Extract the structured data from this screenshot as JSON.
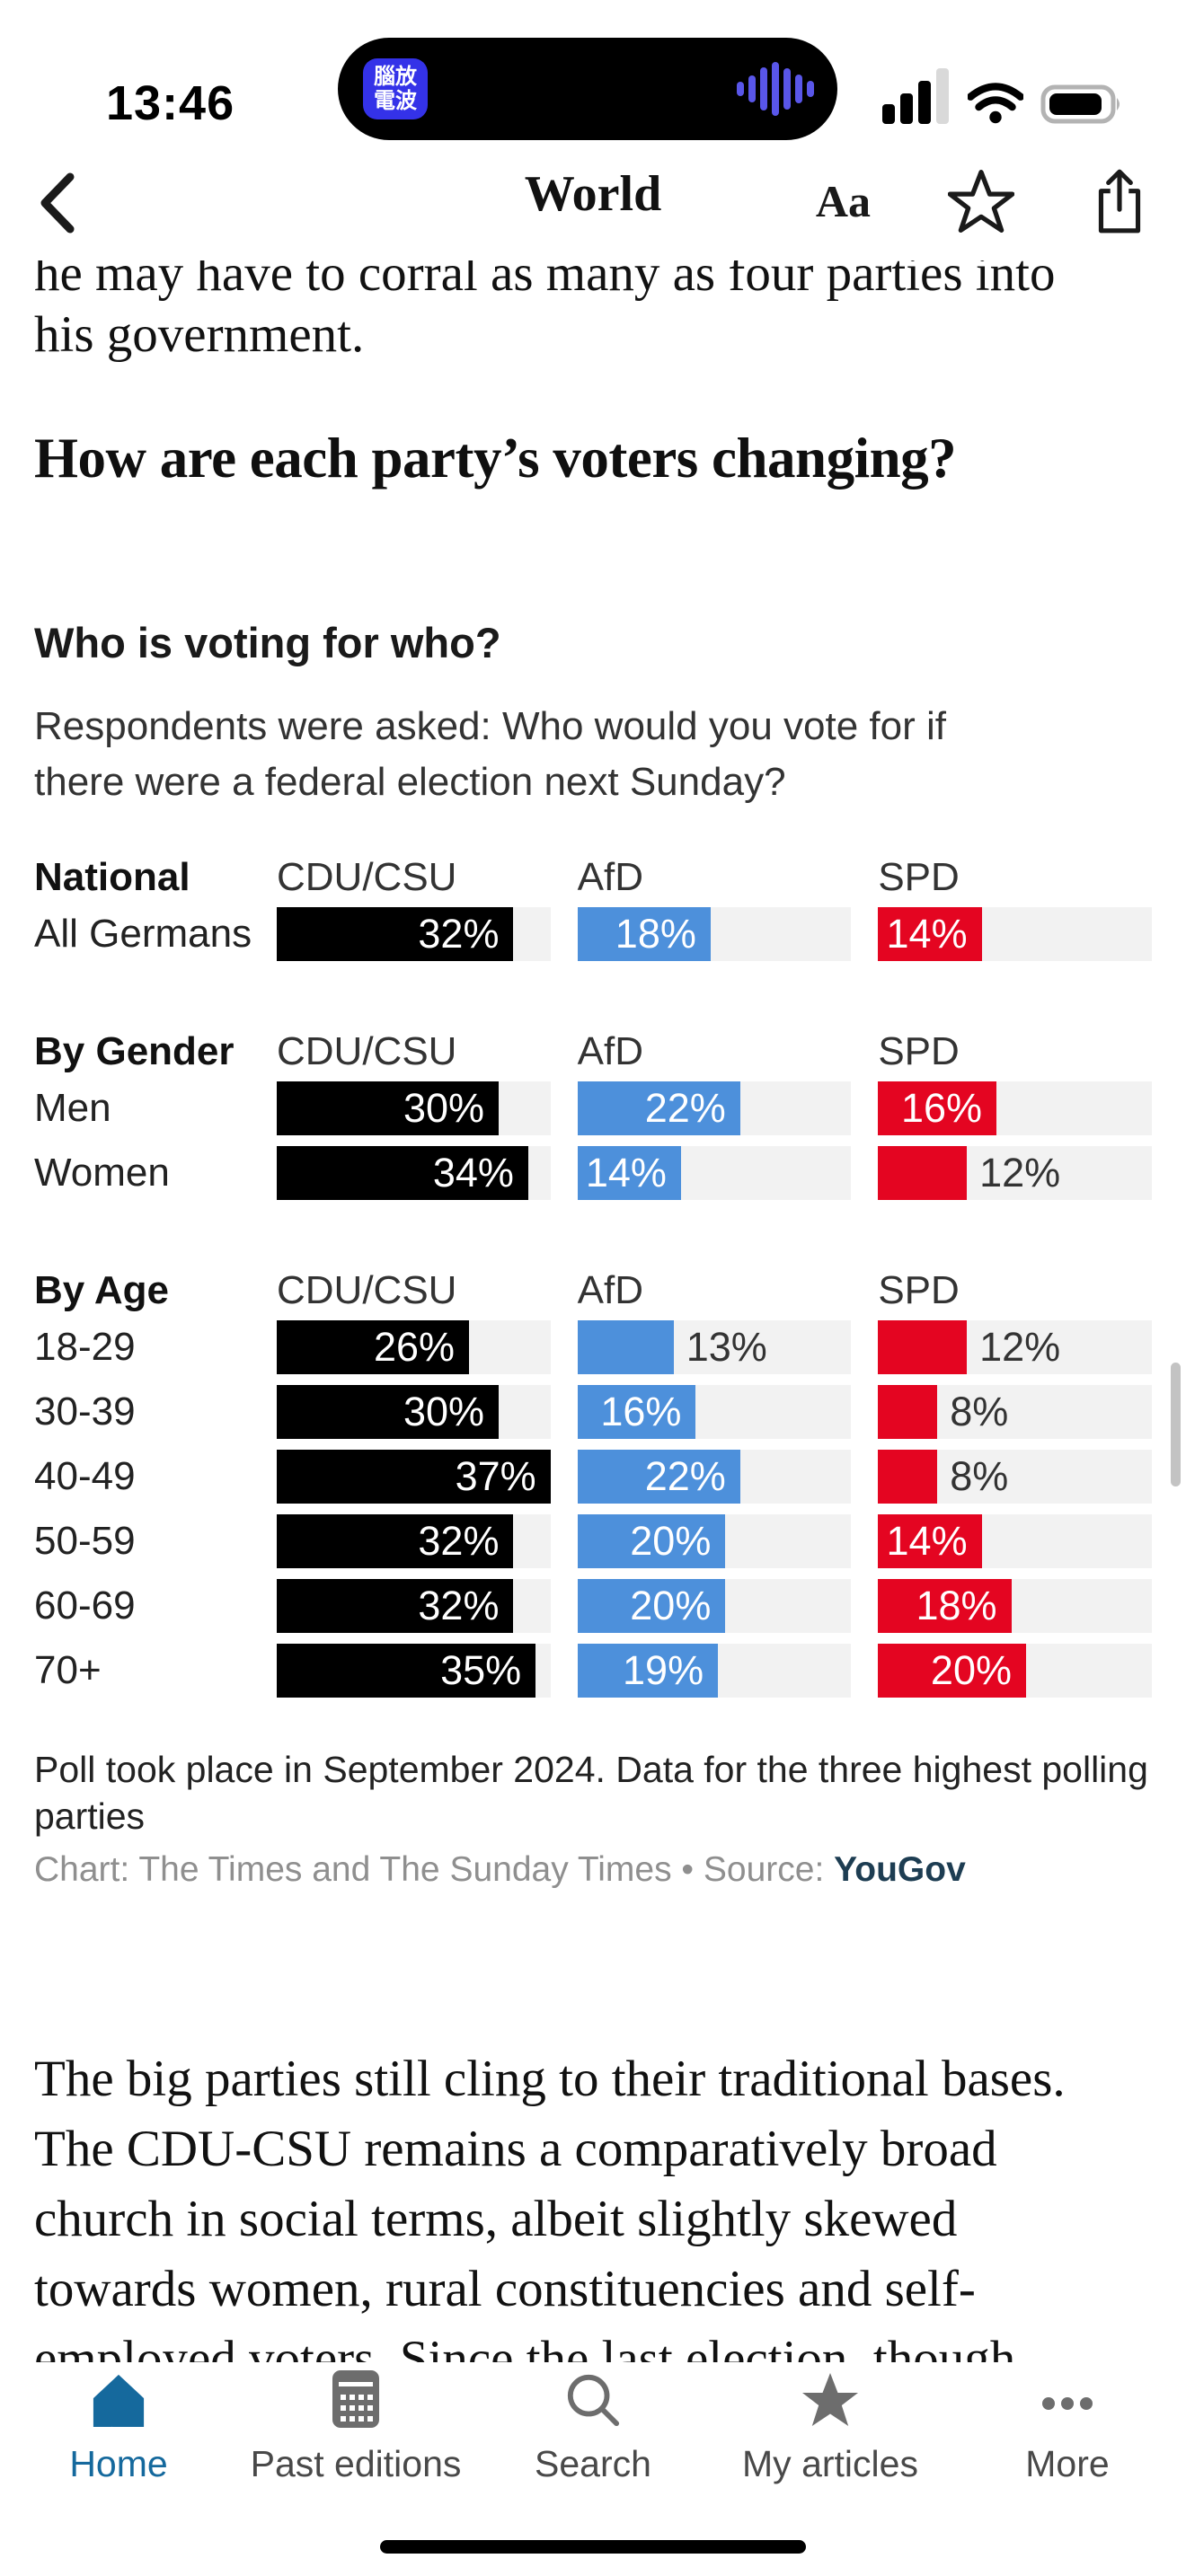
{
  "status_bar": {
    "time": "13:46",
    "island": {
      "app_icon_text": "腦放\n電波",
      "waveform_icon": "audio-waveform"
    },
    "icons": [
      "cellular-signal",
      "wifi",
      "battery"
    ]
  },
  "nav": {
    "title": "World",
    "text_size_label": "Aa"
  },
  "article": {
    "clipped_line": "he may have to corral as many as four parties into",
    "second_line": "his government.",
    "heading": "How are each party’s voters changing?"
  },
  "chart_data": {
    "type": "bar",
    "title": "Who is voting for who?",
    "subtitle_lines": [
      "Respondents were asked: Who would you vote for if",
      "there were a federal election next Sunday?"
    ],
    "series_names": [
      "CDU/CSU",
      "AfD",
      "SPD"
    ],
    "series_colors": [
      "#000000",
      "#4d90db",
      "#e40521"
    ],
    "track_color": "#f2f2f2",
    "scale_max": 37,
    "inside_label_min": 14,
    "unit": "%",
    "groups": [
      {
        "label": "National",
        "rows": [
          {
            "label": "All Germans",
            "values": [
              32,
              18,
              14
            ]
          }
        ]
      },
      {
        "label": "By Gender",
        "rows": [
          {
            "label": "Men",
            "values": [
              30,
              22,
              16
            ]
          },
          {
            "label": "Women",
            "values": [
              34,
              14,
              12
            ]
          }
        ]
      },
      {
        "label": "By Age",
        "rows": [
          {
            "label": "18-29",
            "values": [
              26,
              13,
              12
            ]
          },
          {
            "label": "30-39",
            "values": [
              30,
              16,
              8
            ]
          },
          {
            "label": "40-49",
            "values": [
              37,
              22,
              8
            ]
          },
          {
            "label": "50-59",
            "values": [
              32,
              20,
              14
            ]
          },
          {
            "label": "60-69",
            "values": [
              32,
              20,
              18
            ]
          },
          {
            "label": "70+",
            "values": [
              35,
              19,
              20
            ]
          }
        ]
      }
    ],
    "footnote": "Poll took place in September 2024. Data for the three highest polling parties",
    "credit_prefix": "Chart: The Times and The Sunday Times • Source: ",
    "credit_source": "YouGov"
  },
  "body_lines": [
    "The big parties still cling to their traditional bases.",
    "The CDU-CSU remains a comparatively broad",
    "church in social terms, albeit slightly skewed",
    "towards women, rural constituencies and self-",
    "employed voters. Since the last election, though."
  ],
  "tab_bar": {
    "items": [
      {
        "label": "Home",
        "icon": "home-icon",
        "active": true
      },
      {
        "label": "Past editions",
        "icon": "past-editions-icon",
        "active": false
      },
      {
        "label": "Search",
        "icon": "search-icon",
        "active": false
      },
      {
        "label": "My articles",
        "icon": "star-icon",
        "active": false
      },
      {
        "label": "More",
        "icon": "more-icon",
        "active": false
      }
    ],
    "active_color": "#15699d",
    "inactive_color": "#6d6d6d"
  }
}
